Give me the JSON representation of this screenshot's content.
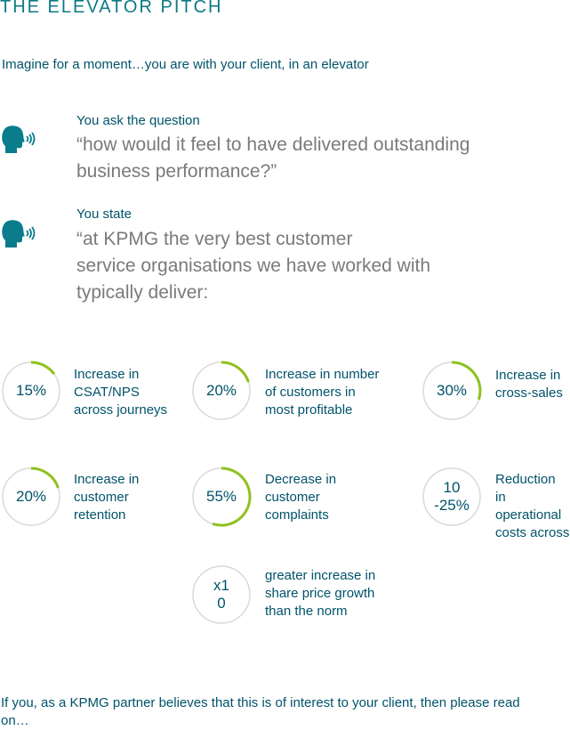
{
  "title": "THE ELEVATOR PITCH",
  "intro": "Imagine for a moment…you are with your client, in an elevator",
  "colors": {
    "accent": "#8dc21f",
    "ring": "#d9d9d9",
    "teal": "#005b6e",
    "quote": "#7a7a7a",
    "icon": "#0a7c8c"
  },
  "prompts": [
    {
      "label": "You ask the question",
      "quote_lines": [
        "“how would it feel to have delivered outstanding",
        "business performance?”"
      ],
      "icon": "speaking-head-icon"
    },
    {
      "label": "You state",
      "quote_lines": [
        "“at KPMG the very best customer",
        "service organisations we have worked with",
        "typically deliver:"
      ],
      "icon": "speaking-head-icon"
    }
  ],
  "stats": [
    {
      "value": "15%",
      "desc_lines": [
        "Increase in",
        "CSAT/NPS",
        "across journeys"
      ],
      "progress": 0.15
    },
    {
      "value": "20%",
      "desc_lines": [
        "Increase in number",
        "of customers in",
        "most profitable"
      ],
      "progress": 0.2
    },
    {
      "value": "30%",
      "desc_lines": [
        "Increase in",
        "cross-sales"
      ],
      "progress": 0.3
    },
    {
      "value": "20%",
      "desc_lines": [
        "Increase in",
        "customer",
        "retention"
      ],
      "progress": 0.2
    },
    {
      "value": "55%",
      "desc_lines": [
        "Decrease in",
        "customer",
        "complaints"
      ],
      "progress": 0.55
    },
    {
      "value_lines": [
        "10",
        "-25%"
      ],
      "desc_lines": [
        "Reduction",
        "in",
        "operational",
        "costs across"
      ],
      "progress": 0
    },
    {
      "value_lines": [
        "x1",
        "0"
      ],
      "desc_lines": [
        "greater increase in",
        "share price growth",
        "than the norm"
      ],
      "progress": 0
    }
  ],
  "closing_lines": [
    "If you, as a KPMG partner believes that this is of interest to your client, then please read",
    "on…"
  ]
}
